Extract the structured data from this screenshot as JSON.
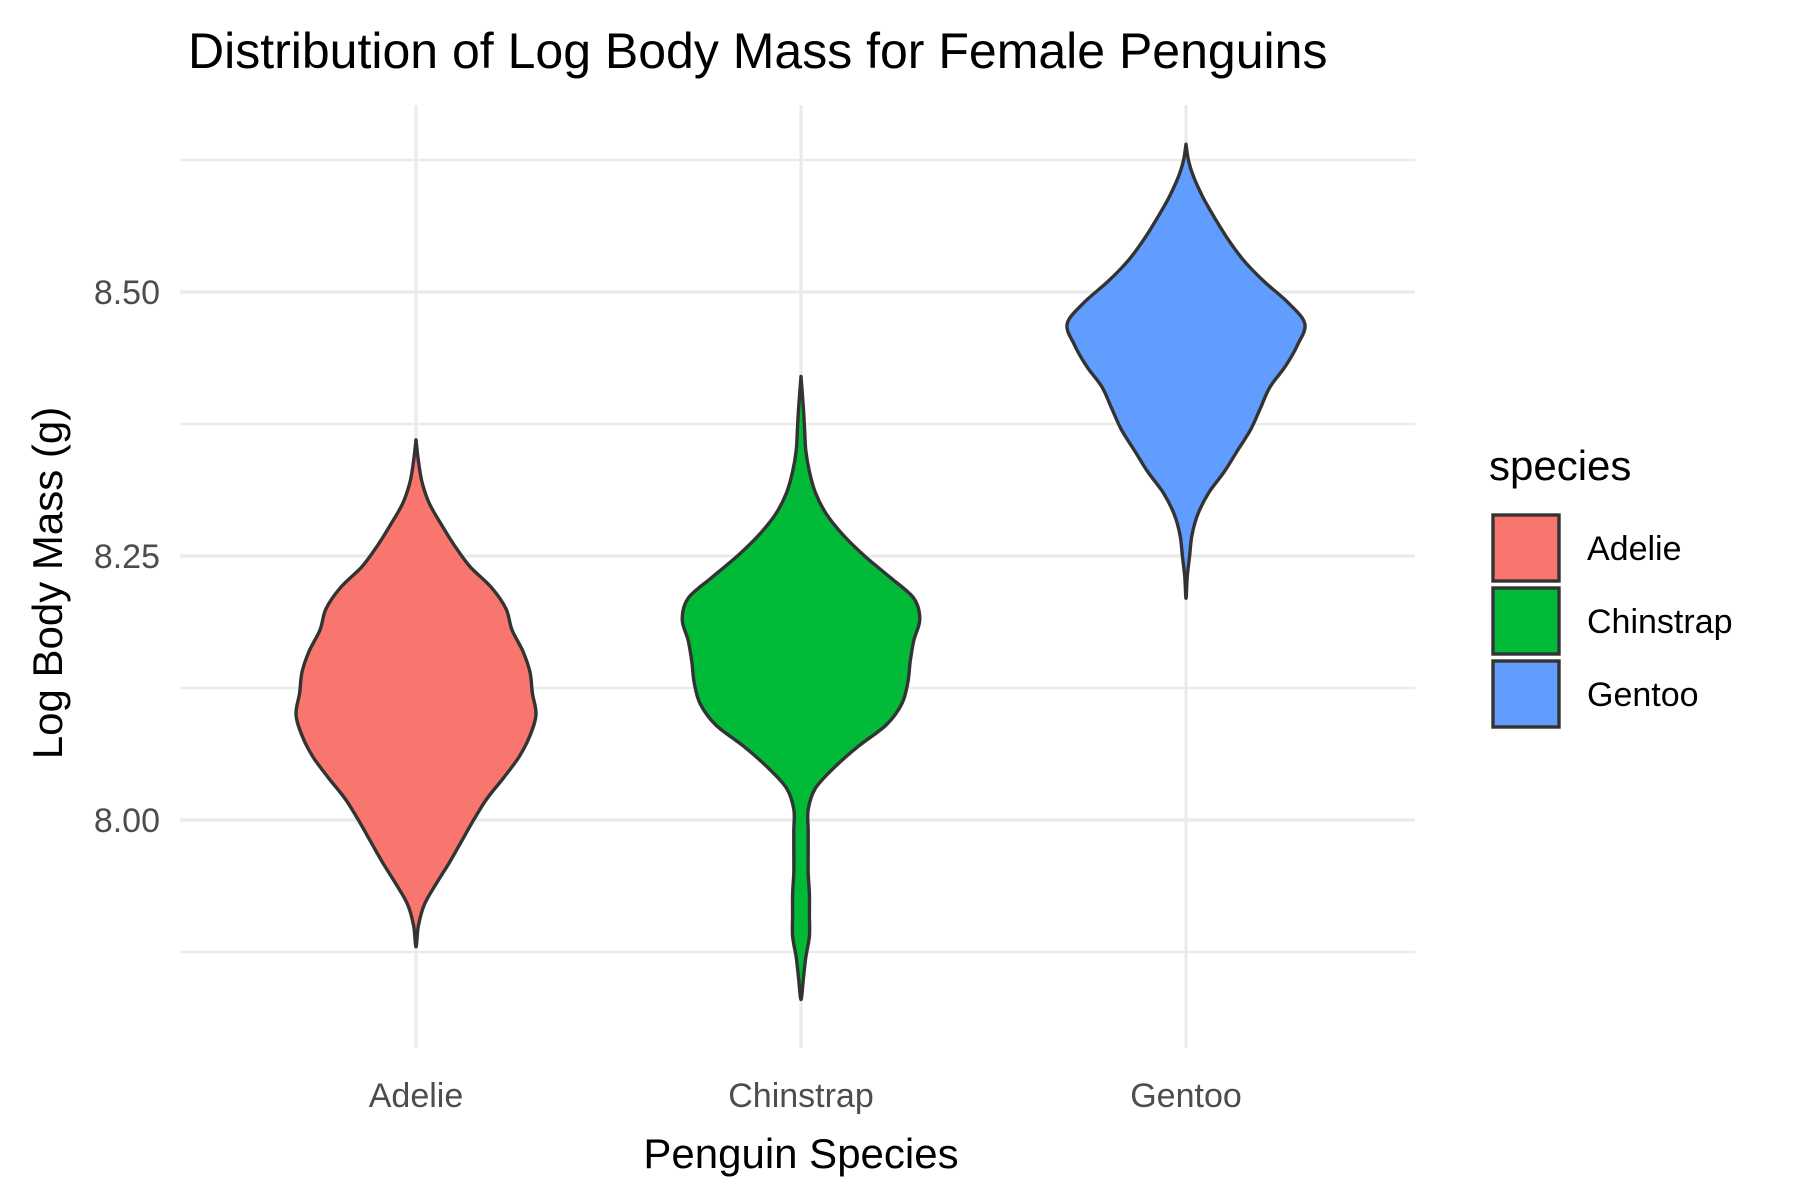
{
  "chart_data": {
    "type": "violin",
    "title": "Distribution of Log Body Mass for Female Penguins",
    "xlabel": "Penguin Species",
    "ylabel": "Log Body Mass (g)",
    "categories": [
      "Adelie",
      "Chinstrap",
      "Gentoo"
    ],
    "y_ticks": [
      8.0,
      8.25,
      8.5
    ],
    "y_tick_labels": [
      "8.00",
      "8.25",
      "8.50"
    ],
    "ylim": [
      7.78,
      8.67
    ],
    "grid": true,
    "legend": {
      "title": "species",
      "position": "right",
      "entries": [
        "Adelie",
        "Chinstrap",
        "Gentoo"
      ]
    },
    "colors": {
      "Adelie": "#F8766D",
      "Chinstrap": "#00BA38",
      "Gentoo": "#619CFF"
    },
    "series": [
      {
        "name": "Adelie",
        "min": 7.88,
        "max": 8.36,
        "density_profile": [
          [
            7.88,
            0.0
          ],
          [
            7.9,
            0.02
          ],
          [
            7.92,
            0.07
          ],
          [
            7.94,
            0.17
          ],
          [
            7.96,
            0.28
          ],
          [
            7.98,
            0.38
          ],
          [
            8.0,
            0.48
          ],
          [
            8.02,
            0.59
          ],
          [
            8.04,
            0.73
          ],
          [
            8.06,
            0.86
          ],
          [
            8.08,
            0.95
          ],
          [
            8.1,
            1.0
          ],
          [
            8.12,
            0.97
          ],
          [
            8.14,
            0.95
          ],
          [
            8.16,
            0.89
          ],
          [
            8.18,
            0.8
          ],
          [
            8.2,
            0.75
          ],
          [
            8.22,
            0.63
          ],
          [
            8.24,
            0.45
          ],
          [
            8.26,
            0.32
          ],
          [
            8.28,
            0.21
          ],
          [
            8.3,
            0.11
          ],
          [
            8.32,
            0.05
          ],
          [
            8.34,
            0.02
          ],
          [
            8.36,
            0.0
          ]
        ]
      },
      {
        "name": "Chinstrap",
        "min": 7.83,
        "max": 8.42,
        "density_profile": [
          [
            7.83,
            0.0
          ],
          [
            7.85,
            0.02
          ],
          [
            7.87,
            0.04
          ],
          [
            7.89,
            0.07
          ],
          [
            7.91,
            0.07
          ],
          [
            7.93,
            0.07
          ],
          [
            7.95,
            0.06
          ],
          [
            7.97,
            0.06
          ],
          [
            7.99,
            0.06
          ],
          [
            8.01,
            0.06
          ],
          [
            8.03,
            0.12
          ],
          [
            8.05,
            0.28
          ],
          [
            8.07,
            0.48
          ],
          [
            8.09,
            0.71
          ],
          [
            8.11,
            0.84
          ],
          [
            8.13,
            0.89
          ],
          [
            8.15,
            0.91
          ],
          [
            8.17,
            0.94
          ],
          [
            8.19,
            0.99
          ],
          [
            8.21,
            0.94
          ],
          [
            8.23,
            0.74
          ],
          [
            8.25,
            0.53
          ],
          [
            8.27,
            0.35
          ],
          [
            8.29,
            0.21
          ],
          [
            8.31,
            0.12
          ],
          [
            8.33,
            0.07
          ],
          [
            8.35,
            0.04
          ],
          [
            8.37,
            0.03
          ],
          [
            8.39,
            0.02
          ],
          [
            8.42,
            0.0
          ]
        ]
      },
      {
        "name": "Gentoo",
        "min": 8.21,
        "max": 8.64,
        "density_profile": [
          [
            8.21,
            0.0
          ],
          [
            8.23,
            0.01
          ],
          [
            8.25,
            0.03
          ],
          [
            8.27,
            0.05
          ],
          [
            8.29,
            0.1
          ],
          [
            8.31,
            0.19
          ],
          [
            8.33,
            0.32
          ],
          [
            8.35,
            0.43
          ],
          [
            8.37,
            0.54
          ],
          [
            8.39,
            0.62
          ],
          [
            8.41,
            0.7
          ],
          [
            8.43,
            0.83
          ],
          [
            8.45,
            0.93
          ],
          [
            8.47,
            0.99
          ],
          [
            8.49,
            0.85
          ],
          [
            8.51,
            0.65
          ],
          [
            8.53,
            0.48
          ],
          [
            8.55,
            0.35
          ],
          [
            8.57,
            0.24
          ],
          [
            8.59,
            0.14
          ],
          [
            8.61,
            0.06
          ],
          [
            8.625,
            0.02
          ],
          [
            8.64,
            0.0
          ]
        ]
      }
    ]
  }
}
